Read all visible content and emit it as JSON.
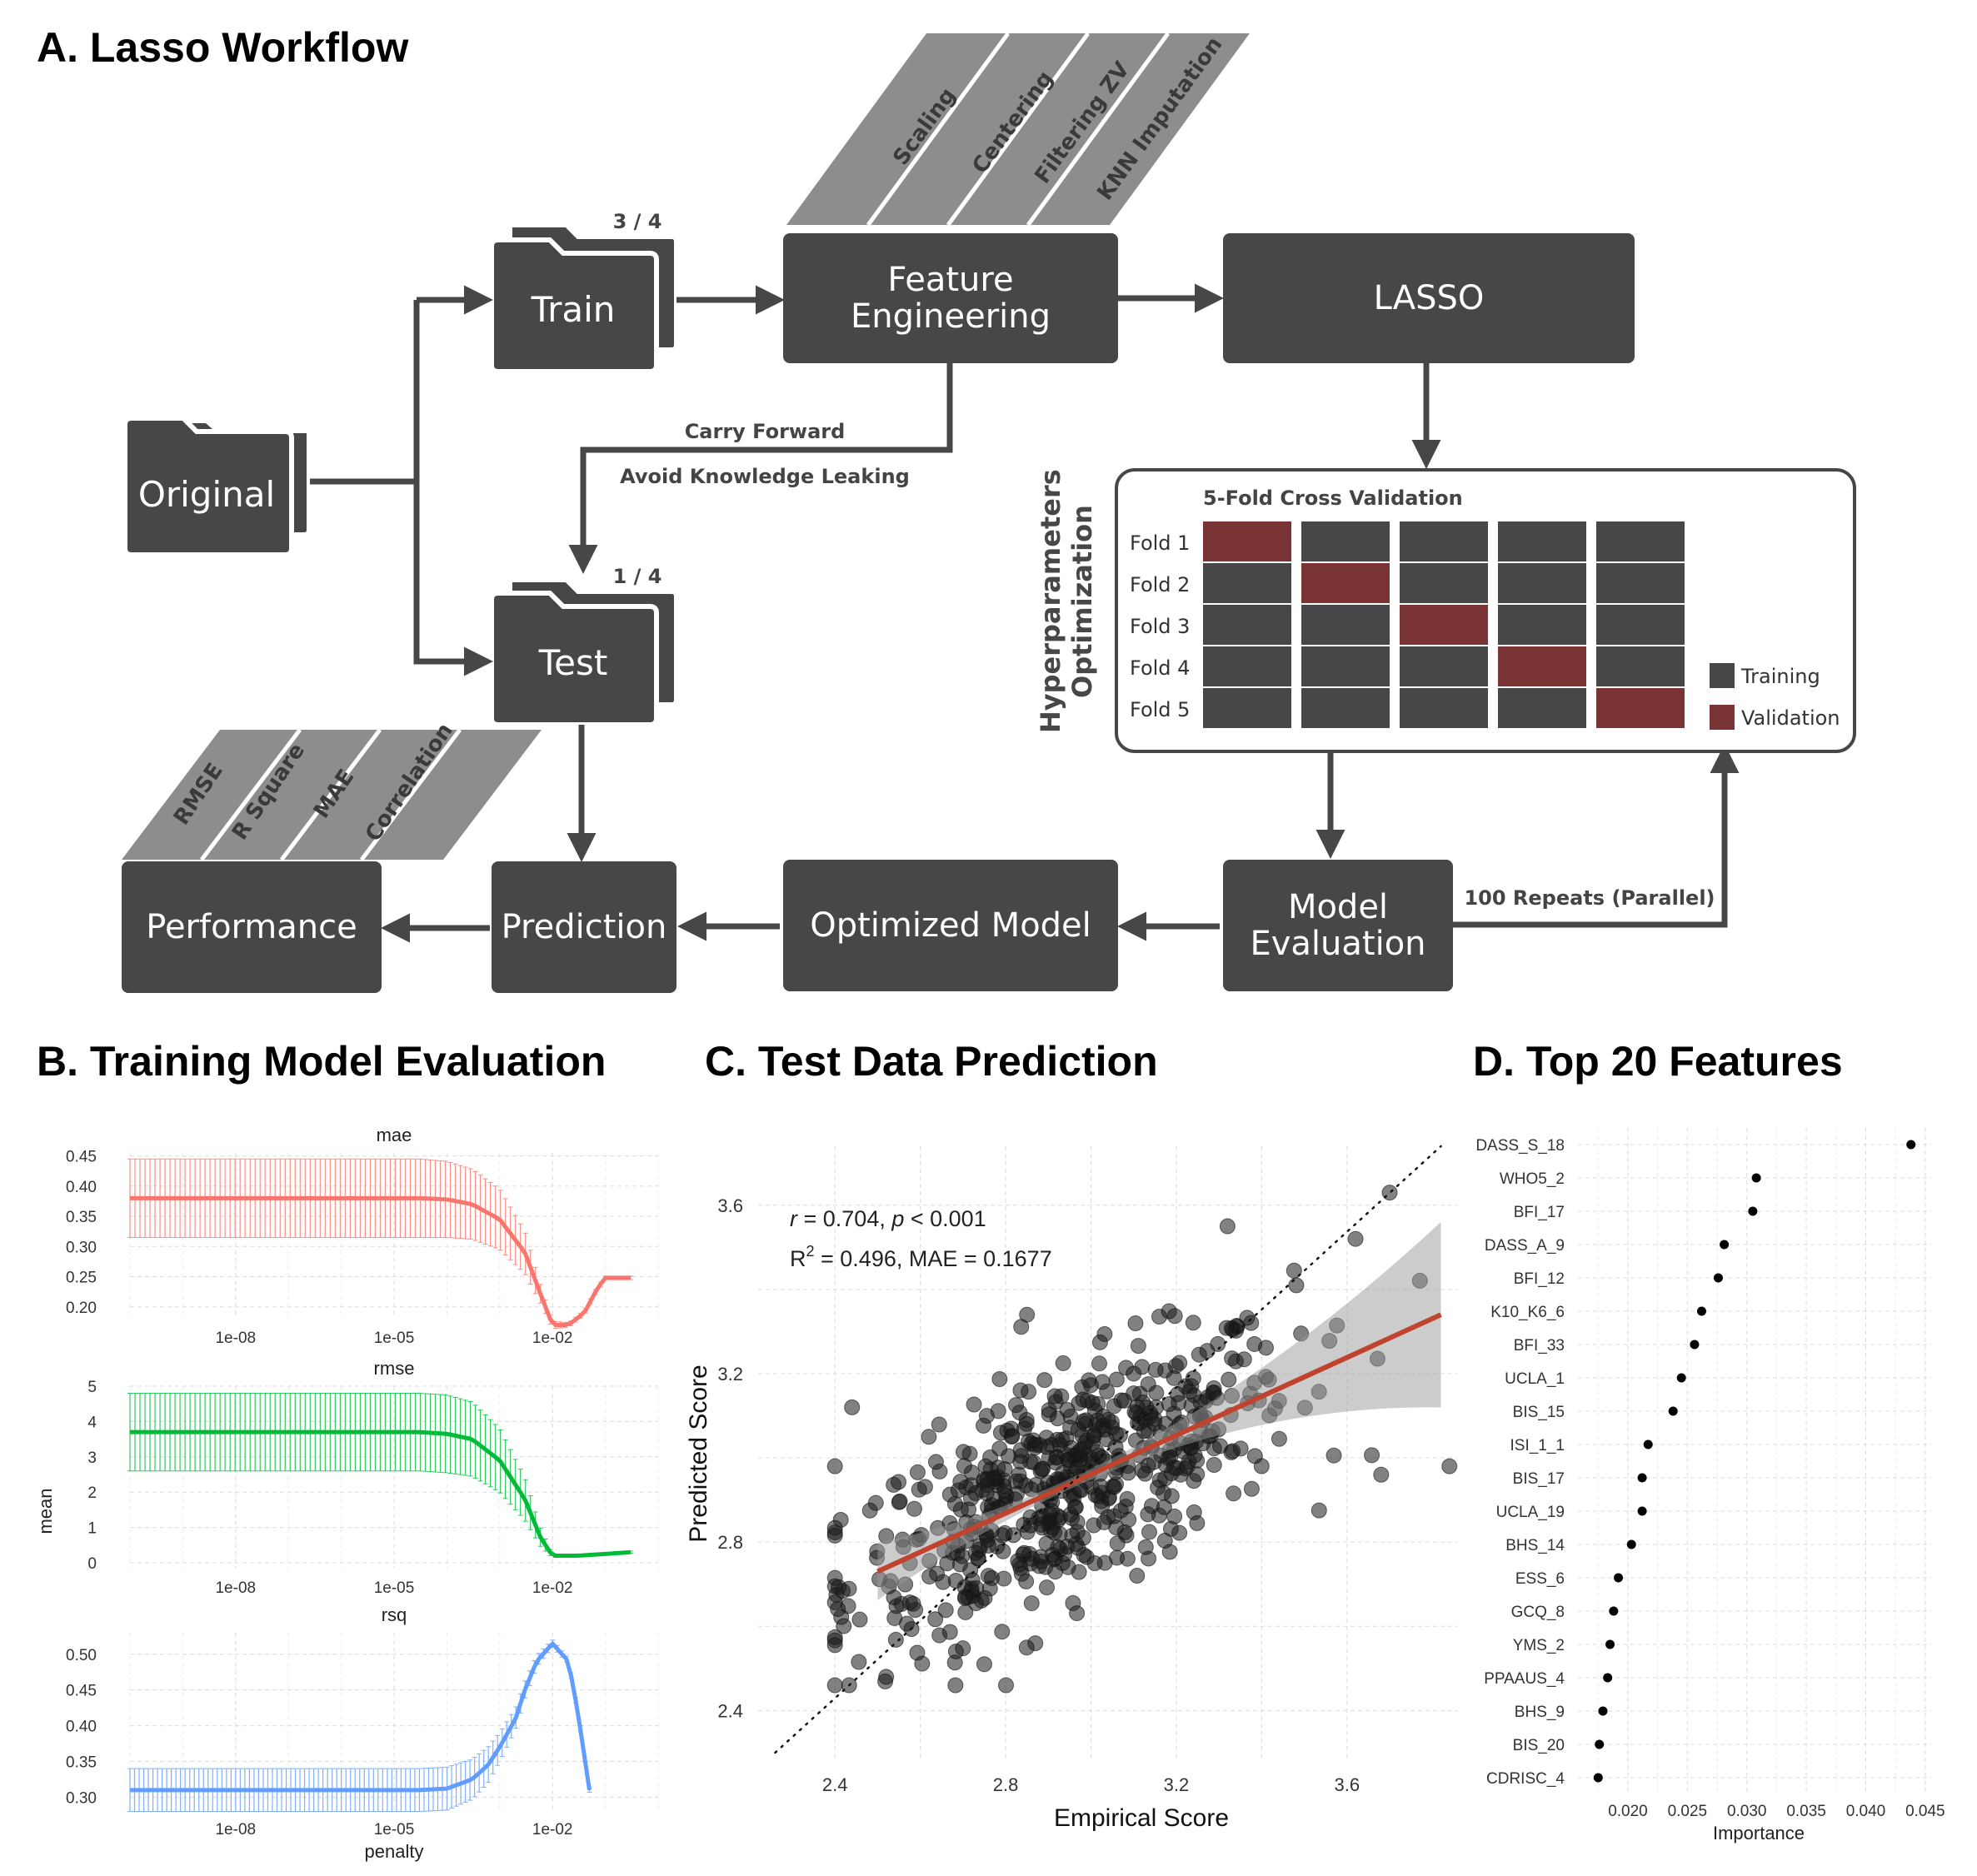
{
  "panels": {
    "a": "A. Lasso Workflow",
    "b": "B. Training Model Evaluation",
    "c": "C. Test Data Prediction",
    "d": "D. Top 20 Features"
  },
  "workflow": {
    "original": "Original",
    "train": "Train",
    "train_frac": "3 / 4",
    "test": "Test",
    "test_frac": "1 / 4",
    "feature_engineering": "Feature Engineering",
    "lasso": "LASSO",
    "prediction": "Prediction",
    "performance": "Performance",
    "optimized_model": "Optimized Model",
    "model_evaluation_1": "Model",
    "model_evaluation_2": "Evaluation",
    "carry_forward": "Carry Forward",
    "avoid_leak": "Avoid Knowledge Leaking",
    "repeats": "100 Repeats (Parallel)",
    "fe_steps": [
      "Scaling",
      "Centering",
      "Filtering ZV",
      "KNN Imputation"
    ],
    "metrics": [
      "RMSE",
      "R Square",
      "MAE",
      "Correlation"
    ],
    "hpo_1": "Hyperparameters",
    "hpo_2": "Optimization",
    "cv_title": "5-Fold Cross Validation",
    "folds": [
      "Fold 1",
      "Fold 2",
      "Fold 3",
      "Fold 4",
      "Fold 5"
    ],
    "legend_training": "Training",
    "legend_validation": "Validation",
    "colors": {
      "box": "#474747",
      "validation": "#7b3436",
      "band": "#8d8d8d"
    }
  },
  "chart_data": [
    {
      "type": "line",
      "panel": "B",
      "facets": [
        "mae",
        "rmse",
        "rsq"
      ],
      "ylabel": "mean",
      "xlabel": "penalty",
      "x_scale": "log10",
      "x_ticks": [
        "1e-08",
        "1e-05",
        "1e-02"
      ],
      "x_range": [
        1e-10,
        1.0
      ],
      "colors": {
        "mae": "#f8766d",
        "rmse": "#00ba38",
        "rsq": "#619cff"
      },
      "series": [
        {
          "name": "mae",
          "y_ticks": [
            "0.45",
            "0.40",
            "0.35",
            "0.30",
            "0.25",
            "0.20"
          ],
          "y_range": [
            0.19,
            0.455
          ],
          "x": [
            1e-10,
            1e-08,
            1e-06,
            3e-05,
            0.0001,
            0.0003,
            0.001,
            0.003,
            0.006,
            0.01,
            0.02,
            0.04,
            0.07,
            0.1,
            0.3
          ],
          "values": [
            0.38,
            0.38,
            0.38,
            0.38,
            0.378,
            0.37,
            0.345,
            0.29,
            0.22,
            0.17,
            0.17,
            0.19,
            0.23,
            0.248,
            0.248
          ],
          "err": [
            0.065,
            0.065,
            0.065,
            0.065,
            0.063,
            0.058,
            0.05,
            0.035,
            0.015,
            0.006,
            0.004,
            0.004,
            0.004,
            0.003,
            0.003
          ]
        },
        {
          "name": "rmse",
          "y_ticks": [
            "5",
            "4",
            "3",
            "2",
            "1",
            "0"
          ],
          "y_range": [
            0,
            5
          ],
          "x": [
            1e-10,
            1e-08,
            1e-06,
            3e-05,
            0.0001,
            0.0003,
            0.001,
            0.003,
            0.006,
            0.01,
            0.03,
            0.1,
            0.3
          ],
          "values": [
            3.7,
            3.7,
            3.7,
            3.7,
            3.65,
            3.5,
            2.9,
            1.8,
            0.7,
            0.2,
            0.2,
            0.25,
            0.3
          ],
          "err": [
            1.1,
            1.1,
            1.1,
            1.1,
            1.1,
            1.05,
            0.9,
            0.6,
            0.25,
            0.05,
            0.03,
            0.03,
            0.03
          ]
        },
        {
          "name": "rsq",
          "y_ticks": [
            "0.50",
            "0.45",
            "0.40",
            "0.35",
            "0.30"
          ],
          "y_range": [
            0.29,
            0.53
          ],
          "x": [
            1e-10,
            1e-08,
            1e-06,
            3e-05,
            0.0001,
            0.0003,
            0.0006,
            0.001,
            0.002,
            0.003,
            0.005,
            0.01,
            0.02,
            0.03,
            0.05
          ],
          "values": [
            0.31,
            0.31,
            0.31,
            0.31,
            0.312,
            0.325,
            0.345,
            0.37,
            0.41,
            0.45,
            0.49,
            0.515,
            0.49,
            0.42,
            0.31
          ],
          "err": [
            0.03,
            0.03,
            0.03,
            0.03,
            0.03,
            0.028,
            0.025,
            0.02,
            0.015,
            0.012,
            0.008,
            0.005,
            0.004,
            0.004,
            0.003
          ]
        }
      ]
    },
    {
      "type": "scatter",
      "panel": "C",
      "xlabel": "Empirical Score",
      "ylabel": "Predicted Score",
      "x_ticks": [
        "2.4",
        "2.8",
        "3.2",
        "3.6"
      ],
      "y_ticks": [
        "2.4",
        "2.8",
        "3.2",
        "3.6"
      ],
      "xlim": [
        2.22,
        3.86
      ],
      "ylim": [
        2.28,
        3.74
      ],
      "annotation_line1": "r = 0.704, p < 0.001",
      "annotation_r": "r",
      "annotation_r_val": " = 0.704, ",
      "annotation_p": "p",
      "annotation_p_val": " < 0.001",
      "annotation_r2_R": "R",
      "annotation_r2_sup": "2",
      "annotation_r2_val": " = 0.496, MAE = 0.1677",
      "regression": {
        "x0": 2.5,
        "y0": 2.73,
        "x1": 3.82,
        "y1": 3.34,
        "color": "#c0432e"
      },
      "identity_line": true,
      "n_points": 600,
      "points_sample": [
        [
          2.4,
          2.98
        ],
        [
          2.44,
          3.12
        ],
        [
          2.62,
          3.05
        ],
        [
          2.75,
          2.51
        ],
        [
          2.85,
          3.34
        ],
        [
          3.32,
          3.55
        ],
        [
          3.62,
          3.52
        ],
        [
          3.7,
          3.63
        ],
        [
          3.84,
          2.98
        ],
        [
          3.68,
          2.96
        ],
        [
          2.52,
          2.48
        ],
        [
          3.1,
          3.2
        ]
      ]
    },
    {
      "type": "scatter",
      "panel": "D",
      "xlabel": "Importance",
      "x_ticks": [
        "0.020",
        "0.025",
        "0.030",
        "0.035",
        "0.040",
        "0.045"
      ],
      "xlim": [
        0.0165,
        0.0455
      ],
      "categories": [
        "DASS_S_18",
        "WHO5_2",
        "BFI_17",
        "DASS_A_9",
        "BFI_12",
        "K10_K6_6",
        "BFI_33",
        "UCLA_1",
        "BIS_15",
        "ISI_1_1",
        "BIS_17",
        "UCLA_19",
        "BHS_14",
        "ESS_6",
        "GCQ_8",
        "YMS_2",
        "PPAAUS_4",
        "BHS_9",
        "BIS_20",
        "CDRISC_4"
      ],
      "values": [
        0.0438,
        0.0308,
        0.0305,
        0.0281,
        0.0276,
        0.0262,
        0.0256,
        0.0245,
        0.0238,
        0.0217,
        0.0212,
        0.0212,
        0.0203,
        0.0192,
        0.0188,
        0.0185,
        0.0183,
        0.0179,
        0.0176,
        0.0175
      ]
    }
  ]
}
